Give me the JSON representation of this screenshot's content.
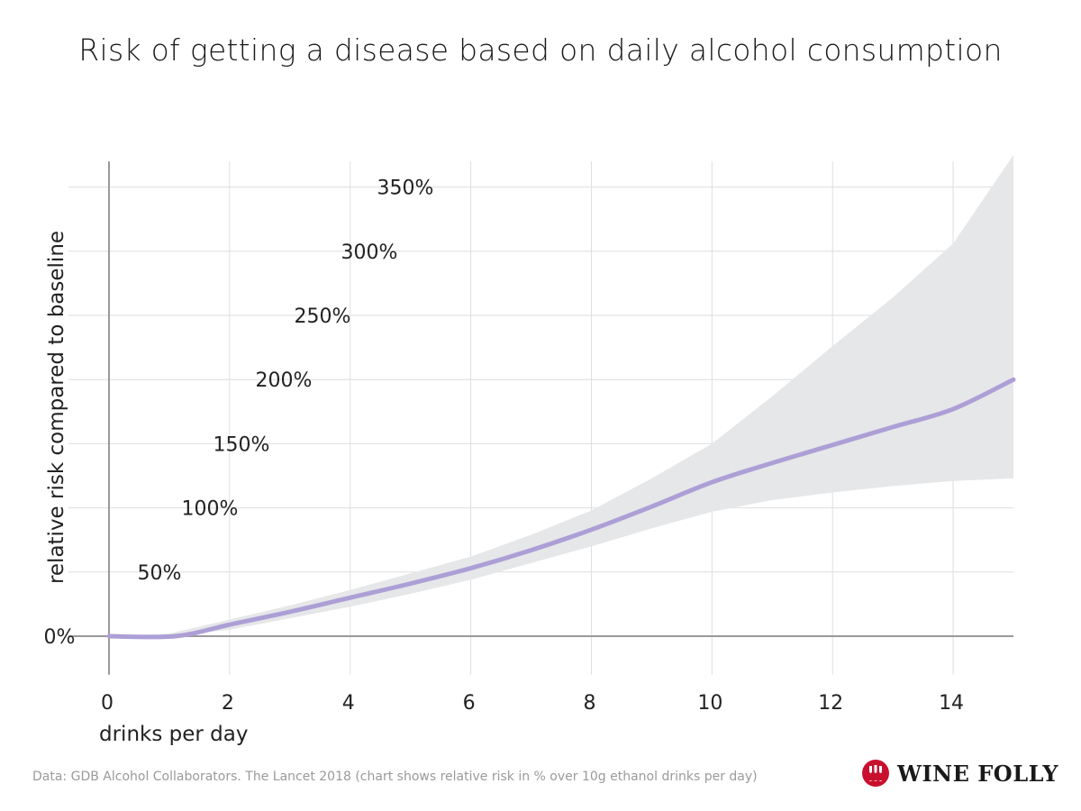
{
  "title": "Risk of getting a disease based on daily alcohol consumption",
  "source_note": "Data: GDB Alcohol Collaborators. The Lancet 2018 (chart shows relative risk in % over 10g ethanol drinks per day)",
  "logo": {
    "text": "WINE FOLLY",
    "icon": "wine-glasses-icon",
    "icon_color": "#c8102e"
  },
  "colors": {
    "line": "#ad9fd6",
    "band": "#e6e7e9",
    "grid": "#dedede",
    "axis": "#999999"
  },
  "chart_data": {
    "type": "line",
    "title": "Risk of getting a disease based on daily alcohol consumption",
    "xlabel": "drinks per day",
    "ylabel": "relative risk compared to baseline",
    "xlim": [
      0,
      15
    ],
    "ylim": [
      -30,
      370
    ],
    "x_ticks": [
      0,
      2,
      4,
      6,
      8,
      10,
      12,
      14
    ],
    "x_tick_labels": [
      "0",
      "2",
      "4",
      "6",
      "8",
      "10",
      "12",
      "14"
    ],
    "y_ticks": [
      0,
      50,
      100,
      150,
      200,
      250,
      300,
      350
    ],
    "y_tick_labels": [
      "0%",
      "50%",
      "100%",
      "150%",
      "200%",
      "250%",
      "300%",
      "350%"
    ],
    "grid": true,
    "series": [
      {
        "kind": "line",
        "x": [
          0,
          1.1,
          2,
          3,
          4,
          5,
          6,
          7,
          8,
          9,
          10,
          11,
          12,
          13,
          14,
          15
        ],
        "y": [
          0,
          0,
          9,
          19,
          30,
          41,
          53,
          67,
          83,
          101,
          120,
          135,
          149,
          163,
          177,
          200
        ]
      },
      {
        "kind": "confidence_band",
        "x": [
          0,
          1,
          2,
          3,
          4,
          5,
          6,
          7,
          8,
          9,
          10,
          11,
          12,
          13,
          14,
          15
        ],
        "lower": [
          0,
          0,
          5,
          14,
          23,
          33,
          44,
          57,
          70,
          84,
          97,
          106,
          112,
          117,
          121,
          123
        ],
        "upper": [
          0,
          2,
          13,
          24,
          36,
          49,
          62,
          79,
          98,
          123,
          150,
          187,
          226,
          264,
          306,
          375
        ]
      }
    ]
  }
}
